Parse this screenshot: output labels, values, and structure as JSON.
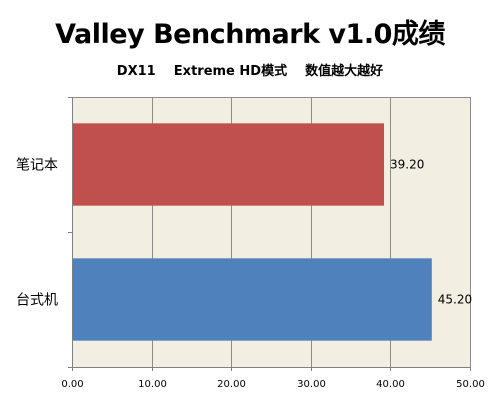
{
  "chart_data": {
    "type": "bar",
    "orientation": "horizontal",
    "title": "Valley Benchmark v1.0成绩",
    "subtitle": "DX11    Extreme HD模式    数值越大越好",
    "categories": [
      "笔记本",
      "台式机"
    ],
    "series": [
      {
        "values": [
          39.2,
          45.2
        ],
        "data_labels": [
          "39.20",
          "45.20"
        ],
        "colors": [
          "#c0504d",
          "#4f81bd"
        ]
      }
    ],
    "xlim": [
      0,
      50
    ],
    "x_ticks": [
      0,
      10,
      20,
      30,
      40,
      50
    ],
    "x_tick_labels": [
      "0.00",
      "10.00",
      "20.00",
      "30.00",
      "40.00",
      "50.00"
    ],
    "xlabel": "",
    "ylabel": "",
    "grid": true,
    "legend": "none",
    "plot_background": "#f2eee1",
    "grid_color": "#8c8c8c"
  }
}
